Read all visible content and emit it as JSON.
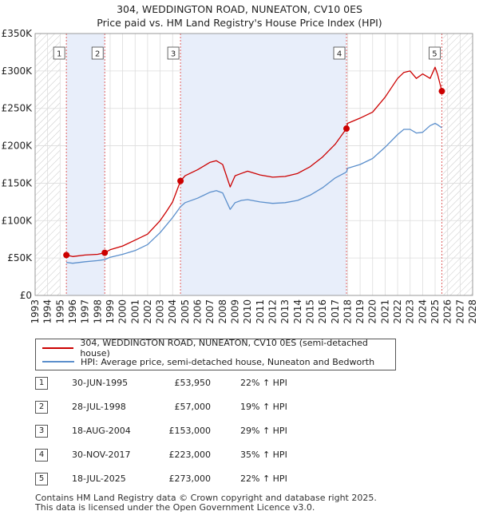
{
  "title_line1": "304, WEDDINGTON ROAD, NUNEATON, CV10 0ES",
  "title_line2": "Price paid vs. HM Land Registry's House Price Index (HPI)",
  "colors": {
    "property": "#cc0000",
    "hpi": "#5b8fcc",
    "sale_band": "#e8eefa",
    "vline": "#e06060",
    "grid": "#dcdcdc"
  },
  "legend": {
    "property_label": "304, WEDDINGTON ROAD, NUNEATON, CV10 0ES (semi-detached house)",
    "hpi_label": "HPI: Average price, semi-detached house, Nuneaton and Bedworth"
  },
  "sales": [
    {
      "num": "1",
      "date": "30-JUN-1995",
      "price": "£53,950",
      "hpi": "22% ↑ HPI"
    },
    {
      "num": "2",
      "date": "28-JUL-1998",
      "price": "£57,000",
      "hpi": "19% ↑ HPI"
    },
    {
      "num": "3",
      "date": "18-AUG-2004",
      "price": "£153,000",
      "hpi": "29% ↑ HPI"
    },
    {
      "num": "4",
      "date": "30-NOV-2017",
      "price": "£223,000",
      "hpi": "35% ↑ HPI"
    },
    {
      "num": "5",
      "date": "18-JUL-2025",
      "price": "£273,000",
      "hpi": "22% ↑ HPI"
    }
  ],
  "footer_line1": "Contains HM Land Registry data © Crown copyright and database right 2025.",
  "footer_line2": "This data is licensed under the Open Government Licence v3.0.",
  "chart_data": {
    "type": "line",
    "title": "304, WEDDINGTON ROAD, NUNEATON, CV10 0ES",
    "subtitle": "Price paid vs. HM Land Registry's House Price Index (HPI)",
    "xlabel": "",
    "ylabel": "",
    "xlim": [
      1993,
      2028
    ],
    "ylim": [
      0,
      350000
    ],
    "x_ticks": [
      1993,
      1994,
      1995,
      1996,
      1997,
      1998,
      1999,
      2000,
      2001,
      2002,
      2003,
      2004,
      2005,
      2006,
      2007,
      2008,
      2009,
      2010,
      2011,
      2012,
      2013,
      2014,
      2015,
      2016,
      2017,
      2018,
      2019,
      2020,
      2021,
      2022,
      2023,
      2024,
      2025,
      2026,
      2027,
      2028
    ],
    "y_ticks": [
      0,
      50000,
      100000,
      150000,
      200000,
      250000,
      300000,
      350000
    ],
    "y_tick_labels": [
      "£0",
      "£50K",
      "£100K",
      "£150K",
      "£200K",
      "£250K",
      "£300K",
      "£350K"
    ],
    "hatched_before": 1995.0,
    "hatched_after": 2025.6,
    "sale_markers": [
      {
        "label": "1",
        "x": 1995.5,
        "y": 53950
      },
      {
        "label": "2",
        "x": 1998.57,
        "y": 57000
      },
      {
        "label": "3",
        "x": 2004.63,
        "y": 153000
      },
      {
        "label": "4",
        "x": 2017.91,
        "y": 223000
      },
      {
        "label": "5",
        "x": 2025.54,
        "y": 273000
      }
    ],
    "series": [
      {
        "name": "304, WEDDINGTON ROAD, NUNEATON, CV10 0ES (semi-detached house)",
        "x": [
          1995.5,
          1996,
          1997,
          1998,
          1998.57,
          1999,
          2000,
          2001,
          2002,
          2003,
          2003.5,
          2004,
          2004.63,
          2005,
          2006,
          2007,
          2007.5,
          2008,
          2008.6,
          2009,
          2009.5,
          2010,
          2011,
          2012,
          2013,
          2014,
          2015,
          2016,
          2017,
          2017.91,
          2018,
          2019,
          2020,
          2021,
          2022,
          2022.5,
          2023,
          2023.5,
          2024,
          2024.6,
          2025,
          2025.2,
          2025.54
        ],
        "values": [
          53950,
          52000,
          54000,
          55000,
          57000,
          61000,
          66000,
          74000,
          82000,
          100000,
          112000,
          125000,
          153000,
          160000,
          168000,
          178000,
          180000,
          175000,
          145000,
          160000,
          163000,
          166000,
          161000,
          158000,
          159000,
          163000,
          172000,
          185000,
          202000,
          223000,
          230000,
          237000,
          245000,
          265000,
          290000,
          298000,
          300000,
          290000,
          296000,
          290000,
          305000,
          295000,
          273000
        ]
      },
      {
        "name": "HPI: Average price, semi-detached house, Nuneaton and Bedworth",
        "x": [
          1995.5,
          1996,
          1997,
          1998,
          1998.57,
          1999,
          2000,
          2001,
          2002,
          2003,
          2003.5,
          2004,
          2004.63,
          2005,
          2006,
          2007,
          2007.5,
          2008,
          2008.6,
          2009,
          2009.5,
          2010,
          2011,
          2012,
          2013,
          2014,
          2015,
          2016,
          2017,
          2017.91,
          2018,
          2019,
          2020,
          2021,
          2022,
          2022.5,
          2023,
          2023.5,
          2024,
          2024.6,
          2025,
          2025.2,
          2025.54
        ],
        "values": [
          44200,
          43000,
          45000,
          46500,
          47900,
          51000,
          55000,
          60000,
          68000,
          84000,
          94000,
          104000,
          118600,
          124000,
          130000,
          138000,
          140000,
          137000,
          115000,
          124000,
          127000,
          128000,
          125000,
          123000,
          124000,
          127000,
          134000,
          144000,
          157000,
          165000,
          170000,
          175000,
          183000,
          198000,
          215000,
          222000,
          222000,
          217000,
          218000,
          227000,
          230000,
          228000,
          224000
        ]
      }
    ]
  }
}
